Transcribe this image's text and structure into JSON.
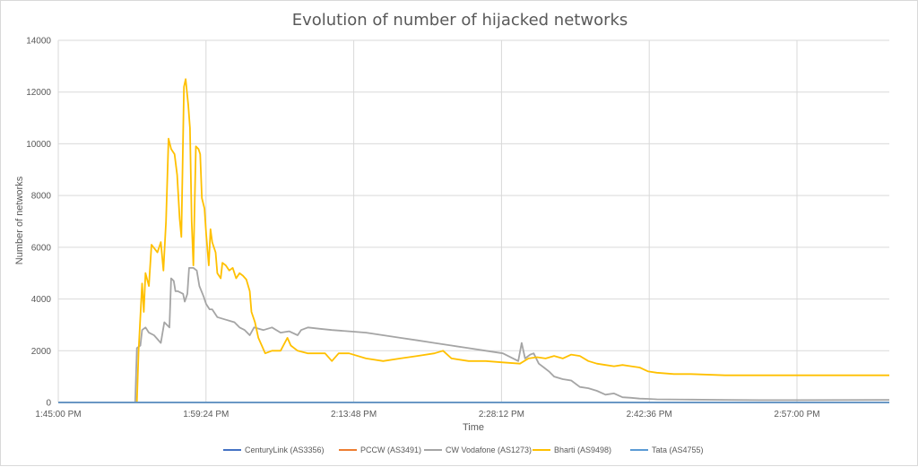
{
  "chart_data": {
    "type": "line",
    "title": "Evolution of number of hijacked networks",
    "xlabel": "Time",
    "ylabel": "Number of networks",
    "ylim": [
      0,
      14000
    ],
    "yticks": [
      "0",
      "2000",
      "4000",
      "6000",
      "8000",
      "10000",
      "12000",
      "14000"
    ],
    "xlim_seconds": [
      6300,
      11160
    ],
    "xticks": [
      {
        "t": 6300,
        "label": "1:45:00 PM"
      },
      {
        "t": 7164,
        "label": "1:59:24 PM"
      },
      {
        "t": 8028,
        "label": "2:13:48 PM"
      },
      {
        "t": 8892,
        "label": "2:28:12 PM"
      },
      {
        "t": 9756,
        "label": "2:42:36 PM"
      },
      {
        "t": 10620,
        "label": "2:57:00 PM"
      }
    ],
    "grid": true,
    "legend_position": "bottom",
    "series": [
      {
        "name": "CenturyLink (AS3356)",
        "color": "#4472c4",
        "points": [
          [
            6300,
            0
          ],
          [
            7200,
            0
          ],
          [
            8000,
            0
          ],
          [
            9000,
            0
          ],
          [
            10000,
            0
          ],
          [
            11160,
            0
          ]
        ]
      },
      {
        "name": "PCCW (AS3491)",
        "color": "#ed7d31",
        "points": [
          [
            6300,
            0
          ],
          [
            7200,
            0
          ],
          [
            8000,
            0
          ],
          [
            9000,
            0
          ],
          [
            10000,
            0
          ],
          [
            11160,
            0
          ]
        ]
      },
      {
        "name": "CW Vodafone (AS1273)",
        "color": "#a5a5a5",
        "points": [
          [
            6300,
            0
          ],
          [
            6750,
            0
          ],
          [
            6760,
            2100
          ],
          [
            6780,
            2200
          ],
          [
            6790,
            2800
          ],
          [
            6810,
            2900
          ],
          [
            6830,
            2700
          ],
          [
            6860,
            2600
          ],
          [
            6900,
            2300
          ],
          [
            6920,
            3100
          ],
          [
            6950,
            2900
          ],
          [
            6960,
            4800
          ],
          [
            6975,
            4700
          ],
          [
            6985,
            4300
          ],
          [
            7000,
            4300
          ],
          [
            7030,
            4200
          ],
          [
            7040,
            3900
          ],
          [
            7055,
            4200
          ],
          [
            7065,
            5200
          ],
          [
            7090,
            5200
          ],
          [
            7110,
            5100
          ],
          [
            7125,
            4500
          ],
          [
            7150,
            4100
          ],
          [
            7165,
            3800
          ],
          [
            7185,
            3600
          ],
          [
            7200,
            3600
          ],
          [
            7230,
            3300
          ],
          [
            7280,
            3200
          ],
          [
            7330,
            3100
          ],
          [
            7360,
            2900
          ],
          [
            7390,
            2800
          ],
          [
            7420,
            2600
          ],
          [
            7445,
            2900
          ],
          [
            7500,
            2800
          ],
          [
            7550,
            2900
          ],
          [
            7600,
            2700
          ],
          [
            7650,
            2750
          ],
          [
            7700,
            2600
          ],
          [
            7720,
            2800
          ],
          [
            7760,
            2900
          ],
          [
            7830,
            2850
          ],
          [
            7900,
            2800
          ],
          [
            8000,
            2750
          ],
          [
            8100,
            2700
          ],
          [
            8200,
            2600
          ],
          [
            8300,
            2500
          ],
          [
            8400,
            2400
          ],
          [
            8500,
            2300
          ],
          [
            8600,
            2200
          ],
          [
            8700,
            2100
          ],
          [
            8800,
            2000
          ],
          [
            8900,
            1900
          ],
          [
            8960,
            1700
          ],
          [
            8990,
            1600
          ],
          [
            9010,
            2300
          ],
          [
            9030,
            1700
          ],
          [
            9060,
            1850
          ],
          [
            9080,
            1900
          ],
          [
            9110,
            1500
          ],
          [
            9140,
            1350
          ],
          [
            9170,
            1200
          ],
          [
            9200,
            1000
          ],
          [
            9250,
            900
          ],
          [
            9300,
            850
          ],
          [
            9350,
            600
          ],
          [
            9400,
            550
          ],
          [
            9450,
            450
          ],
          [
            9500,
            300
          ],
          [
            9550,
            350
          ],
          [
            9600,
            200
          ],
          [
            9650,
            180
          ],
          [
            9700,
            150
          ],
          [
            9750,
            140
          ],
          [
            9800,
            120
          ],
          [
            10000,
            110
          ],
          [
            10200,
            100
          ],
          [
            10400,
            90
          ],
          [
            10600,
            90
          ],
          [
            11160,
            100
          ]
        ]
      },
      {
        "name": "Bharti (AS9498)",
        "color": "#ffc000",
        "points": [
          [
            6300,
            0
          ],
          [
            6760,
            0
          ],
          [
            6770,
            2000
          ],
          [
            6790,
            4600
          ],
          [
            6800,
            3500
          ],
          [
            6810,
            5000
          ],
          [
            6830,
            4500
          ],
          [
            6845,
            6100
          ],
          [
            6880,
            5800
          ],
          [
            6900,
            6200
          ],
          [
            6915,
            5100
          ],
          [
            6930,
            7000
          ],
          [
            6945,
            10200
          ],
          [
            6960,
            9800
          ],
          [
            6980,
            9600
          ],
          [
            6995,
            8800
          ],
          [
            7010,
            7100
          ],
          [
            7020,
            6400
          ],
          [
            7035,
            12200
          ],
          [
            7045,
            12500
          ],
          [
            7060,
            11500
          ],
          [
            7070,
            10600
          ],
          [
            7080,
            7000
          ],
          [
            7090,
            5300
          ],
          [
            7105,
            9900
          ],
          [
            7120,
            9800
          ],
          [
            7130,
            9600
          ],
          [
            7140,
            7900
          ],
          [
            7155,
            7500
          ],
          [
            7165,
            6500
          ],
          [
            7180,
            5300
          ],
          [
            7190,
            6700
          ],
          [
            7200,
            6200
          ],
          [
            7220,
            5800
          ],
          [
            7230,
            5000
          ],
          [
            7250,
            4800
          ],
          [
            7260,
            5400
          ],
          [
            7280,
            5300
          ],
          [
            7300,
            5100
          ],
          [
            7320,
            5200
          ],
          [
            7340,
            4800
          ],
          [
            7360,
            5000
          ],
          [
            7380,
            4900
          ],
          [
            7400,
            4750
          ],
          [
            7420,
            4300
          ],
          [
            7430,
            3500
          ],
          [
            7450,
            3100
          ],
          [
            7470,
            2500
          ],
          [
            7490,
            2200
          ],
          [
            7510,
            1900
          ],
          [
            7550,
            2000
          ],
          [
            7600,
            2000
          ],
          [
            7640,
            2500
          ],
          [
            7660,
            2200
          ],
          [
            7700,
            2000
          ],
          [
            7760,
            1900
          ],
          [
            7860,
            1900
          ],
          [
            7900,
            1600
          ],
          [
            7940,
            1900
          ],
          [
            8000,
            1900
          ],
          [
            8100,
            1700
          ],
          [
            8200,
            1600
          ],
          [
            8300,
            1700
          ],
          [
            8400,
            1800
          ],
          [
            8500,
            1900
          ],
          [
            8550,
            2000
          ],
          [
            8600,
            1700
          ],
          [
            8700,
            1600
          ],
          [
            8800,
            1600
          ],
          [
            8900,
            1550
          ],
          [
            9000,
            1500
          ],
          [
            9050,
            1700
          ],
          [
            9100,
            1750
          ],
          [
            9150,
            1700
          ],
          [
            9200,
            1800
          ],
          [
            9250,
            1700
          ],
          [
            9300,
            1850
          ],
          [
            9350,
            1800
          ],
          [
            9400,
            1600
          ],
          [
            9450,
            1500
          ],
          [
            9500,
            1450
          ],
          [
            9550,
            1400
          ],
          [
            9600,
            1450
          ],
          [
            9650,
            1400
          ],
          [
            9700,
            1350
          ],
          [
            9750,
            1200
          ],
          [
            9800,
            1150
          ],
          [
            9900,
            1100
          ],
          [
            10000,
            1100
          ],
          [
            10200,
            1050
          ],
          [
            10500,
            1050
          ],
          [
            11160,
            1050
          ]
        ]
      },
      {
        "name": "Tata (AS4755)",
        "color": "#5b9bd5",
        "points": [
          [
            6300,
            0
          ],
          [
            7200,
            0
          ],
          [
            8000,
            0
          ],
          [
            9000,
            0
          ],
          [
            10000,
            0
          ],
          [
            11160,
            0
          ]
        ]
      }
    ]
  }
}
